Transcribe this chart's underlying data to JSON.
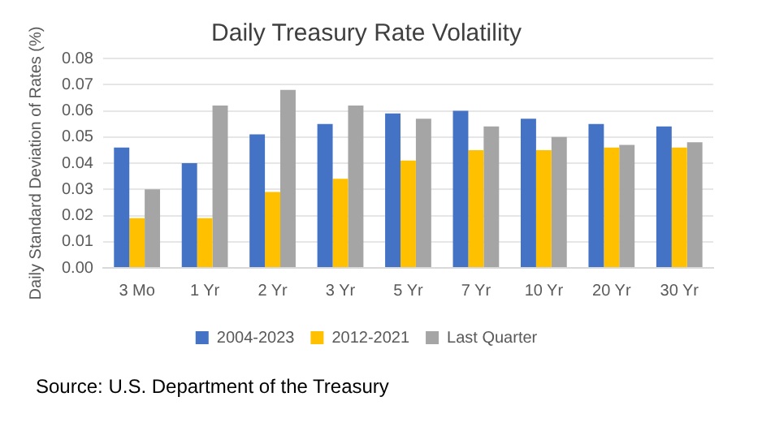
{
  "chart_data": {
    "type": "bar",
    "title": "Daily Treasury Rate Volatility",
    "ylabel": "Daily Standard Deviation of Rates (%)",
    "categories": [
      "3 Mo",
      "1 Yr",
      "2 Yr",
      "3 Yr",
      "5 Yr",
      "7 Yr",
      "10 Yr",
      "20 Yr",
      "30 Yr"
    ],
    "series": [
      {
        "name": "2004-2023",
        "color": "#4472c4",
        "values": [
          0.046,
          0.04,
          0.051,
          0.055,
          0.059,
          0.06,
          0.057,
          0.055,
          0.054
        ]
      },
      {
        "name": "2012-2021",
        "color": "#ffc000",
        "values": [
          0.019,
          0.019,
          0.029,
          0.034,
          0.041,
          0.045,
          0.045,
          0.046,
          0.046
        ]
      },
      {
        "name": "Last Quarter",
        "color": "#a5a5a5",
        "values": [
          0.03,
          0.062,
          0.068,
          0.062,
          0.057,
          0.054,
          0.05,
          0.047,
          0.048
        ]
      }
    ],
    "ylim": [
      0,
      0.08
    ],
    "yticks": [
      {
        "value": 0,
        "label": "0.00"
      },
      {
        "value": 0.01,
        "label": "0.01"
      },
      {
        "value": 0.02,
        "label": "0.02"
      },
      {
        "value": 0.03,
        "label": "0.03"
      },
      {
        "value": 0.04,
        "label": "0.04"
      },
      {
        "value": 0.05,
        "label": "0.05"
      },
      {
        "value": 0.06,
        "label": "0.06"
      },
      {
        "value": 0.07,
        "label": "0.07"
      },
      {
        "value": 0.08,
        "label": "0.08"
      }
    ],
    "grid": "y",
    "legend": "bottom",
    "annotations": [
      "Source: U.S. Department of the Treasury"
    ]
  }
}
